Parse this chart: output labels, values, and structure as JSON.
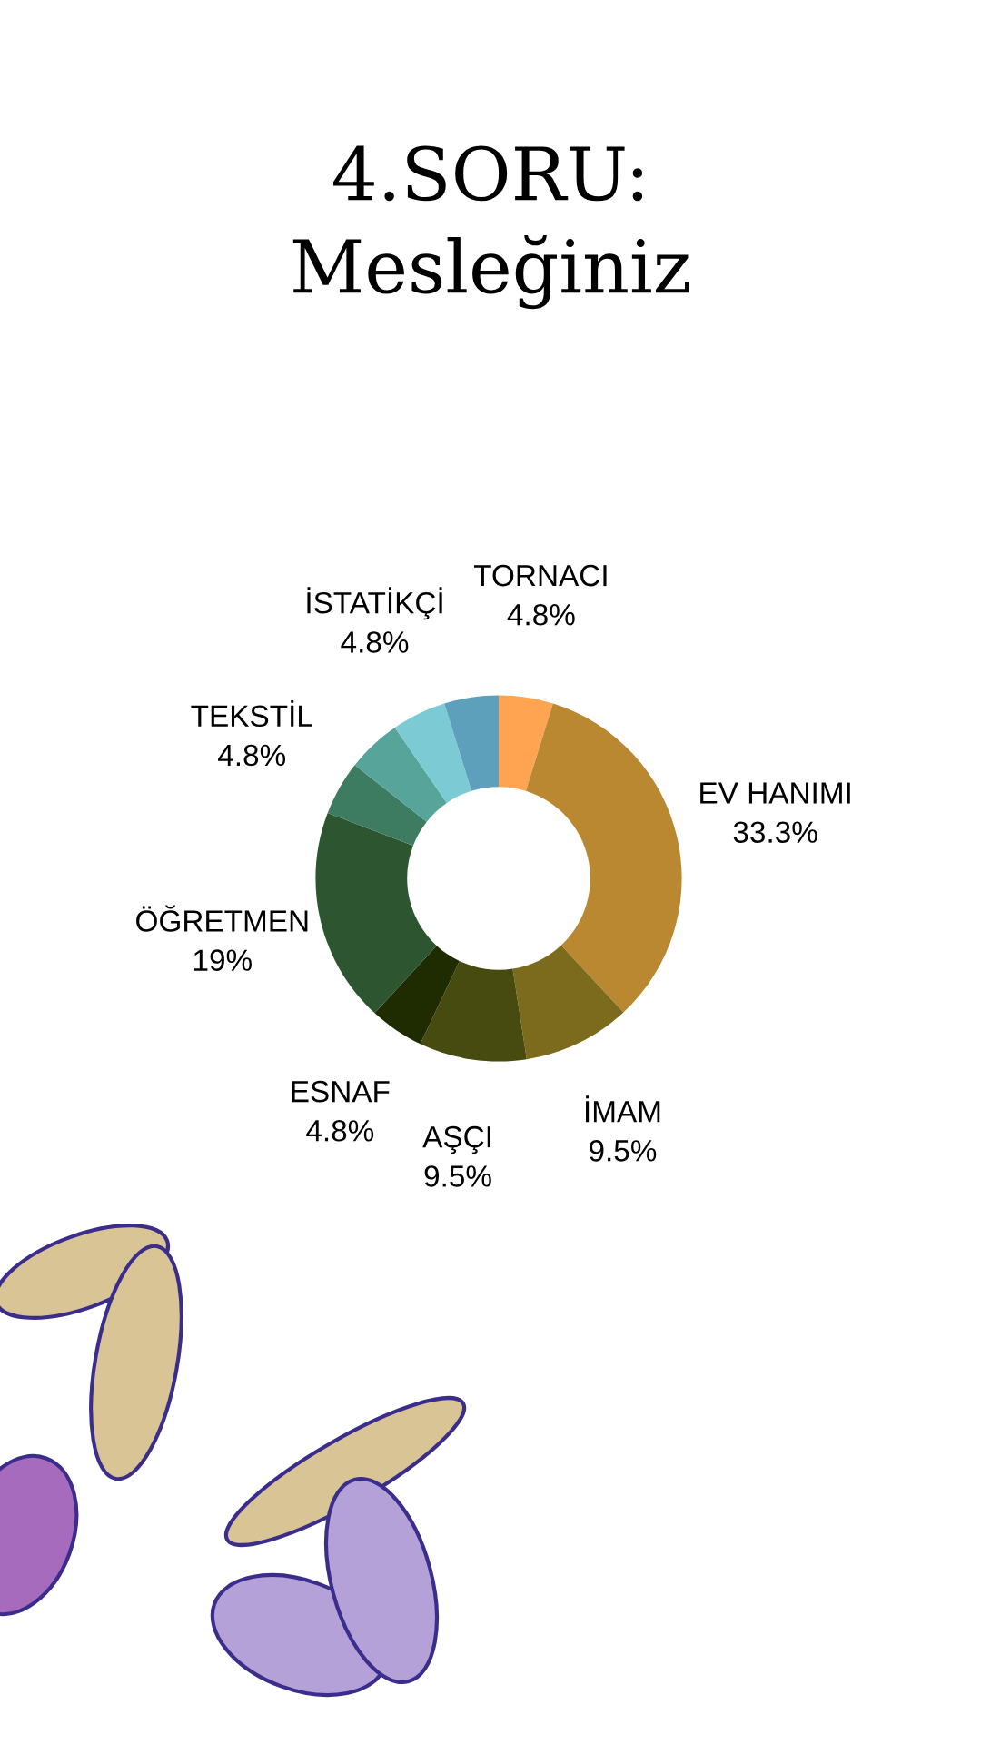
{
  "chart_data": {
    "type": "donut",
    "title": "4.SORU:\nMesleğiniz",
    "categories": [
      "TORNACI",
      "EV HANIMI",
      "İMAM",
      "AŞÇI",
      "ESNAF",
      "ÖĞRETMEN",
      "TEKSTİL",
      null,
      "İSTATİKÇİ",
      null
    ],
    "values": [
      4.8,
      33.3,
      9.5,
      9.5,
      4.8,
      19,
      4.8,
      4.8,
      4.8,
      4.8
    ],
    "value_labels": [
      "4.8%",
      "33.3%",
      "9.5%",
      "9.5%",
      "4.8%",
      "19%",
      "4.8%",
      null,
      "4.8%",
      null
    ],
    "colors": [
      "#ffa552",
      "#b98830",
      "#7d6b1d",
      "#474b0f",
      "#1f2c02",
      "#2c5530",
      "#3e7c62",
      "#57a49a",
      "#7ccbd4",
      "#5da0bb"
    ]
  }
}
